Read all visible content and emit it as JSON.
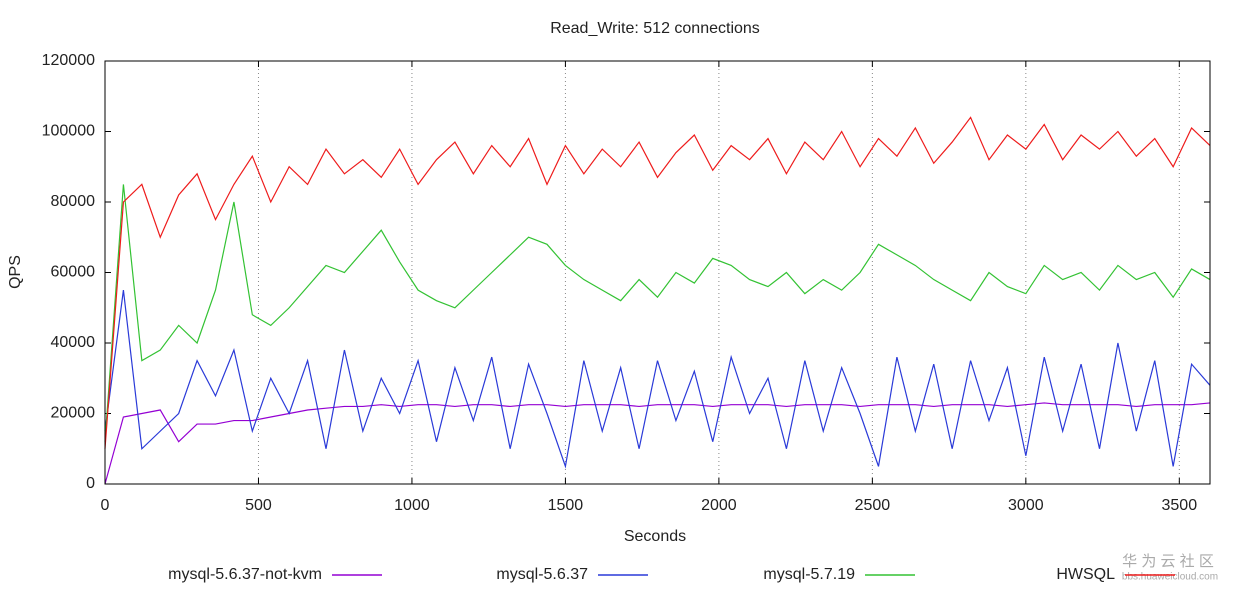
{
  "chart_data": {
    "type": "line",
    "title": "Read_Write: 512 connections",
    "x_label": "Seconds",
    "y_label": "QPS",
    "xlim": [
      0,
      3600
    ],
    "ylim": [
      0,
      120000
    ],
    "xticks": [
      0,
      500,
      1000,
      1500,
      2000,
      2500,
      3000,
      3500
    ],
    "yticks": [
      0,
      20000,
      40000,
      60000,
      80000,
      100000,
      120000
    ],
    "xgrid": true,
    "legend": "bottom",
    "x": [
      0,
      60,
      120,
      180,
      240,
      300,
      360,
      420,
      480,
      540,
      600,
      660,
      720,
      780,
      840,
      900,
      960,
      1020,
      1080,
      1140,
      1200,
      1260,
      1320,
      1380,
      1440,
      1500,
      1560,
      1620,
      1680,
      1740,
      1800,
      1860,
      1920,
      1980,
      2040,
      2100,
      2160,
      2220,
      2280,
      2340,
      2400,
      2460,
      2520,
      2580,
      2640,
      2700,
      2760,
      2820,
      2880,
      2940,
      3000,
      3060,
      3120,
      3180,
      3240,
      3300,
      3360,
      3420,
      3480,
      3540,
      3600
    ],
    "series": [
      {
        "name": "mysql-5.6.37-not-kvm",
        "color": "#9400d3",
        "values": [
          0,
          19000,
          20000,
          21000,
          12000,
          17000,
          17000,
          18000,
          18000,
          19000,
          20000,
          21000,
          21500,
          22000,
          22000,
          22500,
          22000,
          22500,
          22500,
          22000,
          22500,
          22500,
          22000,
          22500,
          22500,
          22000,
          22500,
          22500,
          22500,
          22000,
          22500,
          22500,
          22500,
          22000,
          22500,
          22500,
          22500,
          22000,
          22500,
          22500,
          22500,
          22000,
          22500,
          22500,
          22500,
          22000,
          22500,
          22500,
          22500,
          22000,
          22500,
          23000,
          22500,
          22500,
          22500,
          22500,
          22000,
          22500,
          22500,
          22500,
          23000
        ]
      },
      {
        "name": "mysql-5.6.37",
        "color": "#2a3ad8",
        "values": [
          15000,
          55000,
          10000,
          15000,
          20000,
          35000,
          25000,
          38000,
          15000,
          30000,
          20000,
          35000,
          10000,
          38000,
          15000,
          30000,
          20000,
          35000,
          12000,
          33000,
          18000,
          36000,
          10000,
          34000,
          20000,
          5000,
          35000,
          15000,
          33000,
          10000,
          35000,
          18000,
          32000,
          12000,
          36000,
          20000,
          30000,
          10000,
          35000,
          15000,
          33000,
          20000,
          5000,
          36000,
          15000,
          34000,
          10000,
          35000,
          18000,
          33000,
          8000,
          36000,
          15000,
          34000,
          10000,
          40000,
          15000,
          35000,
          5000,
          34000,
          28000
        ]
      },
      {
        "name": "mysql-5.7.19",
        "color": "#33c233",
        "values": [
          12000,
          85000,
          35000,
          38000,
          45000,
          40000,
          55000,
          80000,
          48000,
          45000,
          50000,
          56000,
          62000,
          60000,
          66000,
          72000,
          63000,
          55000,
          52000,
          50000,
          55000,
          60000,
          65000,
          70000,
          68000,
          62000,
          58000,
          55000,
          52000,
          58000,
          53000,
          60000,
          57000,
          64000,
          62000,
          58000,
          56000,
          60000,
          54000,
          58000,
          55000,
          60000,
          68000,
          65000,
          62000,
          58000,
          55000,
          52000,
          60000,
          56000,
          54000,
          62000,
          58000,
          60000,
          55000,
          62000,
          58000,
          60000,
          53000,
          61000,
          58000
        ]
      },
      {
        "name": "HWSQL",
        "color": "#ee1c1c",
        "values": [
          10000,
          80000,
          85000,
          70000,
          82000,
          88000,
          75000,
          85000,
          93000,
          80000,
          90000,
          85000,
          95000,
          88000,
          92000,
          87000,
          95000,
          85000,
          92000,
          97000,
          88000,
          96000,
          90000,
          98000,
          85000,
          96000,
          88000,
          95000,
          90000,
          97000,
          87000,
          94000,
          99000,
          89000,
          96000,
          92000,
          98000,
          88000,
          97000,
          92000,
          100000,
          90000,
          98000,
          93000,
          101000,
          91000,
          97000,
          104000,
          92000,
          99000,
          95000,
          102000,
          92000,
          99000,
          95000,
          100000,
          93000,
          98000,
          90000,
          101000,
          96000
        ]
      }
    ],
    "watermark": [
      "华 为 云 社 区",
      "bbs.huaweicloud.com"
    ]
  }
}
